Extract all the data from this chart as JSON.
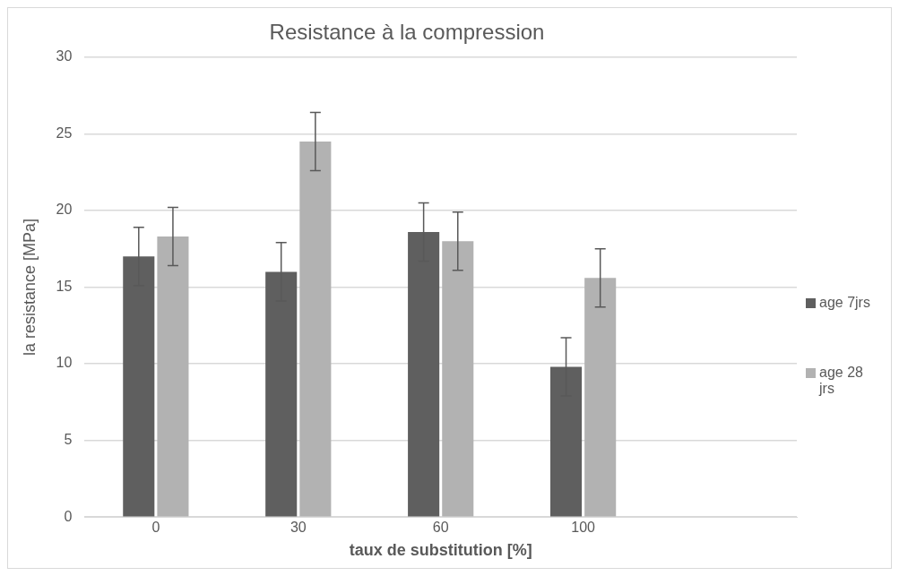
{
  "chart_data": {
    "type": "bar",
    "title": "Resistance à la compression",
    "xlabel": "taux de substitution [%]",
    "ylabel": "la resistance [MPa]",
    "categories": [
      "0",
      "30",
      "60",
      "100",
      null
    ],
    "series": [
      {
        "name": "age 7jrs",
        "color": "#5f5f5f",
        "values": [
          17.0,
          16.0,
          18.6,
          9.8,
          null
        ],
        "errors": [
          1.9,
          1.9,
          1.9,
          1.9,
          null
        ]
      },
      {
        "name": "age 28 jrs",
        "color": "#b2b2b2",
        "values": [
          18.3,
          24.5,
          18.0,
          15.6,
          null
        ],
        "errors": [
          1.9,
          1.9,
          1.9,
          1.9,
          null
        ]
      }
    ],
    "ylim": [
      0,
      30
    ],
    "yticks": [
      0,
      5,
      10,
      15,
      20,
      25,
      30
    ],
    "grid": "y",
    "legend": "right"
  }
}
